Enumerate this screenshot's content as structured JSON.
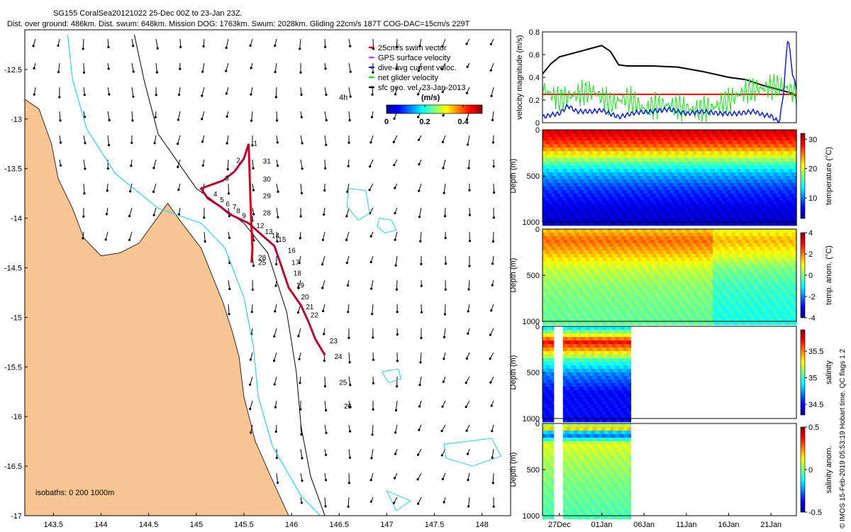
{
  "header": {
    "line1": "SG155 CoralSea20121022 25-Dec 00Z to 23-Jan 23Z.",
    "line2": "Dist. over ground: 486km. Dist. swum: 648km. Mission DOG: 1763km. Swum: 2028km. Gliding 22cm/s 187T COG-DAC=15cm/s 229T"
  },
  "credit": "© IMOS 15-Feb-2019 05:53:19 Hobart time. QC flags 1  2",
  "colors": {
    "land": "#f7c592",
    "isobath_200": "#2fd0e6",
    "isobath_1000": "#000000",
    "track": "#d0021b",
    "swim_series": "#ff0000",
    "net_series": "#22e022",
    "dac_series": "#0a1fd6",
    "dog_series": "#000000"
  },
  "chart_data": [
    {
      "type": "scatter",
      "name": "track-map",
      "xlim": [
        143.2,
        148.3
      ],
      "ylim": [
        -17,
        -12.1
      ],
      "xticks": [
        "143.5",
        "144",
        "144.5",
        "145",
        "145.5",
        "146",
        "146.5",
        "147",
        "147.5",
        "148"
      ],
      "yticks": [
        "-12.5",
        "-13",
        "-13.5",
        "-14",
        "-14.5",
        "-15",
        "-15.5",
        "-16",
        "-16.5",
        "-17"
      ],
      "legend": {
        "items": [
          "25cm/s swim vector",
          "GPS surface velocity",
          "dive-avg current veloc.",
          "net glider velocity",
          "sfc geo. vel. 23-Jan-2013"
        ],
        "marker_colors": [
          "#d0021b",
          "#c040ff",
          "#0a1fd6",
          "#22e022",
          "#000000"
        ]
      },
      "age_label": "4h",
      "colorbar": {
        "title": "(m/s)",
        "ticks": [
          "0",
          "0.2",
          "0.4"
        ],
        "range": [
          0,
          0.5
        ]
      },
      "isobaths_label": "isobaths: 0   200  1000m",
      "track": [
        [
          145.55,
          -13.25
        ],
        [
          145.5,
          -13.4
        ],
        [
          145.4,
          -13.53
        ],
        [
          145.28,
          -13.62
        ],
        [
          145.05,
          -13.7
        ],
        [
          145.12,
          -13.8
        ],
        [
          145.25,
          -13.88
        ],
        [
          145.35,
          -13.96
        ],
        [
          145.55,
          -14.05
        ],
        [
          145.7,
          -14.18
        ],
        [
          145.82,
          -14.28
        ],
        [
          145.9,
          -14.5
        ],
        [
          145.97,
          -14.7
        ],
        [
          146.1,
          -14.88
        ],
        [
          146.18,
          -15.05
        ],
        [
          146.25,
          -15.22
        ],
        [
          146.35,
          -15.38
        ]
      ],
      "northbound": [
        [
          145.55,
          -13.25
        ],
        [
          145.56,
          -13.55
        ],
        [
          145.57,
          -13.85
        ],
        [
          145.58,
          -14.1
        ],
        [
          145.59,
          -14.3
        ],
        [
          145.58,
          -14.45
        ]
      ],
      "day_labels": [
        {
          "t": "1",
          "x": 145.6,
          "y": -13.27
        },
        {
          "t": "2",
          "x": 145.42,
          "y": -13.44
        },
        {
          "t": "3",
          "x": 145.3,
          "y": -13.62
        },
        {
          "t": "4",
          "x": 145.18,
          "y": -13.78
        },
        {
          "t": "5",
          "x": 145.25,
          "y": -13.84
        },
        {
          "t": "6",
          "x": 145.31,
          "y": -13.88
        },
        {
          "t": "7",
          "x": 145.38,
          "y": -13.91
        },
        {
          "t": "8",
          "x": 145.42,
          "y": -13.95
        },
        {
          "t": "9",
          "x": 145.48,
          "y": -14.0
        },
        {
          "t": "1",
          "x": 145.57,
          "y": -14.03
        },
        {
          "t": "12",
          "x": 145.63,
          "y": -14.1
        },
        {
          "t": "13",
          "x": 145.72,
          "y": -14.16
        },
        {
          "t": "14",
          "x": 145.79,
          "y": -14.2
        },
        {
          "t": "15",
          "x": 145.86,
          "y": -14.24
        },
        {
          "t": "16",
          "x": 145.96,
          "y": -14.35
        },
        {
          "t": "17",
          "x": 146.0,
          "y": -14.47
        },
        {
          "t": "18",
          "x": 146.02,
          "y": -14.58
        },
        {
          "t": "19",
          "x": 146.05,
          "y": -14.7
        },
        {
          "t": "20",
          "x": 146.1,
          "y": -14.82
        },
        {
          "t": "21",
          "x": 146.15,
          "y": -14.92
        },
        {
          "t": "22",
          "x": 146.2,
          "y": -15.0
        },
        {
          "t": "23",
          "x": 146.4,
          "y": -15.26
        },
        {
          "t": "24",
          "x": 146.45,
          "y": -15.42
        },
        {
          "t": "25",
          "x": 146.5,
          "y": -15.68
        },
        {
          "t": "26",
          "x": 146.55,
          "y": -15.92
        },
        {
          "t": "31",
          "x": 145.7,
          "y": -13.45
        },
        {
          "t": "30",
          "x": 145.7,
          "y": -13.63
        },
        {
          "t": "29",
          "x": 145.7,
          "y": -13.8
        },
        {
          "t": "28",
          "x": 145.7,
          "y": -13.97
        },
        {
          "t": "28",
          "x": 145.65,
          "y": -14.42
        },
        {
          "t": "25",
          "x": 145.65,
          "y": -14.47
        }
      ],
      "coast": [
        [
          143.2,
          -12.8
        ],
        [
          143.35,
          -12.9
        ],
        [
          143.48,
          -13.25
        ],
        [
          143.55,
          -13.6
        ],
        [
          143.7,
          -13.9
        ],
        [
          143.82,
          -14.2
        ],
        [
          144.0,
          -14.38
        ],
        [
          144.2,
          -14.35
        ],
        [
          144.4,
          -14.25
        ],
        [
          144.55,
          -14.05
        ],
        [
          144.7,
          -13.85
        ],
        [
          144.85,
          -14.05
        ],
        [
          145.05,
          -14.3
        ],
        [
          145.28,
          -14.85
        ],
        [
          145.38,
          -15.15
        ],
        [
          145.45,
          -15.4
        ],
        [
          145.5,
          -15.8
        ],
        [
          145.62,
          -16.25
        ],
        [
          145.78,
          -16.6
        ],
        [
          145.97,
          -17.0
        ],
        [
          143.2,
          -17.0
        ]
      ],
      "iso200": [
        [
          143.65,
          -12.15
        ],
        [
          143.7,
          -12.6
        ],
        [
          143.85,
          -13.1
        ],
        [
          144.15,
          -13.55
        ],
        [
          144.6,
          -13.9
        ],
        [
          145.05,
          -14.05
        ],
        [
          145.3,
          -14.3
        ],
        [
          145.5,
          -14.8
        ],
        [
          145.6,
          -15.3
        ],
        [
          145.65,
          -15.8
        ],
        [
          145.8,
          -16.3
        ],
        [
          146.1,
          -16.8
        ],
        [
          146.3,
          -17.0
        ]
      ],
      "iso1000": [
        [
          144.35,
          -12.15
        ],
        [
          144.45,
          -12.6
        ],
        [
          144.6,
          -13.15
        ],
        [
          145.0,
          -13.7
        ],
        [
          145.5,
          -14.05
        ],
        [
          145.75,
          -14.35
        ],
        [
          145.95,
          -14.95
        ],
        [
          146.05,
          -15.55
        ],
        [
          146.1,
          -16.1
        ],
        [
          146.2,
          -16.6
        ],
        [
          146.35,
          -17.0
        ]
      ],
      "reefs": [
        [
          [
            146.6,
            -13.7
          ],
          [
            146.78,
            -13.72
          ],
          [
            146.82,
            -13.95
          ],
          [
            146.7,
            -14.02
          ],
          [
            146.58,
            -13.88
          ]
        ],
        [
          [
            146.92,
            -14.0
          ],
          [
            147.05,
            -14.02
          ],
          [
            147.1,
            -14.12
          ],
          [
            146.98,
            -14.15
          ],
          [
            146.9,
            -14.08
          ]
        ],
        [
          [
            146.95,
            -15.55
          ],
          [
            147.12,
            -15.52
          ],
          [
            147.15,
            -15.62
          ],
          [
            147.02,
            -15.66
          ]
        ],
        [
          [
            147.6,
            -16.28
          ],
          [
            148.1,
            -16.22
          ],
          [
            148.2,
            -16.4
          ],
          [
            147.9,
            -16.5
          ],
          [
            147.62,
            -16.42
          ]
        ],
        [
          [
            147.0,
            -16.75
          ],
          [
            147.25,
            -16.85
          ],
          [
            147.1,
            -16.95
          ]
        ]
      ]
    },
    {
      "type": "line",
      "name": "velocity-magnitude",
      "ylabel": "velocity magnitude (m/s)",
      "ylim": [
        0,
        0.8
      ],
      "yticks": [
        "0",
        "0.2",
        "0.4",
        "0.6",
        "0.8"
      ],
      "x_days": [
        25,
        55
      ],
      "series": [
        {
          "name": "mission DOG",
          "x": [
            25,
            26,
            27,
            29,
            31,
            32,
            33,
            34,
            35,
            38,
            41,
            44,
            47,
            49,
            51,
            52,
            53,
            54.5,
            55
          ],
          "values": [
            0.43,
            0.52,
            0.58,
            0.62,
            0.66,
            0.68,
            0.63,
            0.51,
            0.5,
            0.5,
            0.49,
            0.45,
            0.4,
            0.38,
            0.33,
            0.31,
            0.29,
            0.26,
            0.23
          ]
        },
        {
          "name": "swim 25cm/s",
          "x": [
            25,
            55
          ],
          "values": [
            0.25,
            0.25
          ]
        },
        {
          "name": "net glider velocity",
          "x": [
            25,
            27,
            29,
            31,
            33,
            35,
            37,
            39,
            41,
            43,
            45,
            47,
            49,
            51,
            53,
            54,
            55
          ],
          "values": [
            0.3,
            0.2,
            0.25,
            0.28,
            0.17,
            0.22,
            0.12,
            0.16,
            0.14,
            0.11,
            0.13,
            0.2,
            0.28,
            0.3,
            0.33,
            0.3,
            0.25
          ]
        },
        {
          "name": "dive-avg current",
          "x": [
            25,
            26,
            27,
            28,
            29,
            30,
            31,
            32,
            34,
            36,
            38,
            40,
            42,
            44,
            46,
            48,
            50,
            51,
            52,
            53,
            53.5,
            54,
            54.5,
            55
          ],
          "values": [
            0.05,
            0.07,
            0.08,
            0.15,
            0.1,
            0.1,
            0.1,
            0.11,
            0.05,
            0.09,
            0.1,
            0.12,
            0.08,
            0.1,
            0.08,
            0.08,
            0.1,
            0.07,
            0.06,
            0.0,
            0.28,
            0.78,
            0.45,
            0.3
          ]
        }
      ]
    },
    {
      "type": "heatmap",
      "name": "temperature-section",
      "ylabel": "Depth (m)",
      "ylim": [
        0,
        1000
      ],
      "yticks": [
        "0",
        "500",
        "1000"
      ],
      "colorbar_label": "temperature (°C)",
      "colorbar_ticks": [
        "30",
        "20",
        "10"
      ],
      "crange": [
        3,
        32
      ],
      "profile": [
        [
          0,
          29.5
        ],
        [
          60,
          28.5
        ],
        [
          150,
          26
        ],
        [
          250,
          21
        ],
        [
          350,
          16
        ],
        [
          450,
          12
        ],
        [
          600,
          8.5
        ],
        [
          800,
          6
        ],
        [
          1000,
          5
        ]
      ],
      "gaps": []
    },
    {
      "type": "heatmap",
      "name": "temperature-anomaly-section",
      "ylabel": "Depth (m)",
      "ylim": [
        0,
        1000
      ],
      "yticks": [
        "0",
        "500",
        "1000"
      ],
      "colorbar_label": "temp. anom. (°C)",
      "colorbar_ticks": [
        "4",
        "2",
        "0",
        "-2",
        "-4"
      ],
      "crange": [
        -4,
        4
      ],
      "profile": [
        [
          0,
          1.5
        ],
        [
          100,
          2.2
        ],
        [
          250,
          1.5
        ],
        [
          400,
          0.6
        ],
        [
          600,
          0.1
        ],
        [
          800,
          -0.1
        ],
        [
          1000,
          -0.2
        ]
      ],
      "gaps": []
    },
    {
      "type": "heatmap",
      "name": "salinity-section",
      "ylabel": "Depth (m)",
      "ylim": [
        0,
        1000
      ],
      "yticks": [
        "0",
        "500",
        "1000"
      ],
      "colorbar_label": "salinity",
      "colorbar_ticks": [
        "35.5",
        "35",
        "34.5"
      ],
      "crange": [
        34.3,
        35.9
      ],
      "profile": [
        [
          0,
          34.9
        ],
        [
          60,
          35.2
        ],
        [
          150,
          35.7
        ],
        [
          250,
          35.4
        ],
        [
          350,
          35.0
        ],
        [
          500,
          34.7
        ],
        [
          700,
          34.5
        ],
        [
          1000,
          34.5
        ]
      ],
      "gaps": [
        [
          26.2,
          27.2
        ],
        [
          35.2,
          55
        ]
      ]
    },
    {
      "type": "heatmap",
      "name": "salinity-anomaly-section",
      "ylabel": "Depth (m)",
      "ylim": [
        0,
        1000
      ],
      "yticks": [
        "0",
        "500",
        "1000"
      ],
      "colorbar_label": "salinity anom.",
      "colorbar_ticks": [
        "0.5",
        "0",
        "-0.5"
      ],
      "crange": [
        -0.5,
        0.5
      ],
      "profile": [
        [
          0,
          0.05
        ],
        [
          50,
          0.2
        ],
        [
          90,
          -0.35
        ],
        [
          200,
          0.1
        ],
        [
          350,
          0.05
        ],
        [
          600,
          0.0
        ],
        [
          1000,
          -0.05
        ]
      ],
      "gaps": [
        [
          26.2,
          27.2
        ],
        [
          35.2,
          55
        ]
      ],
      "xticks": [
        "27Dec",
        "01Jan",
        "06Jan",
        "11Jan",
        "16Jan",
        "21Jan"
      ],
      "xtick_days": [
        27,
        32,
        37,
        42,
        47,
        52
      ]
    }
  ]
}
